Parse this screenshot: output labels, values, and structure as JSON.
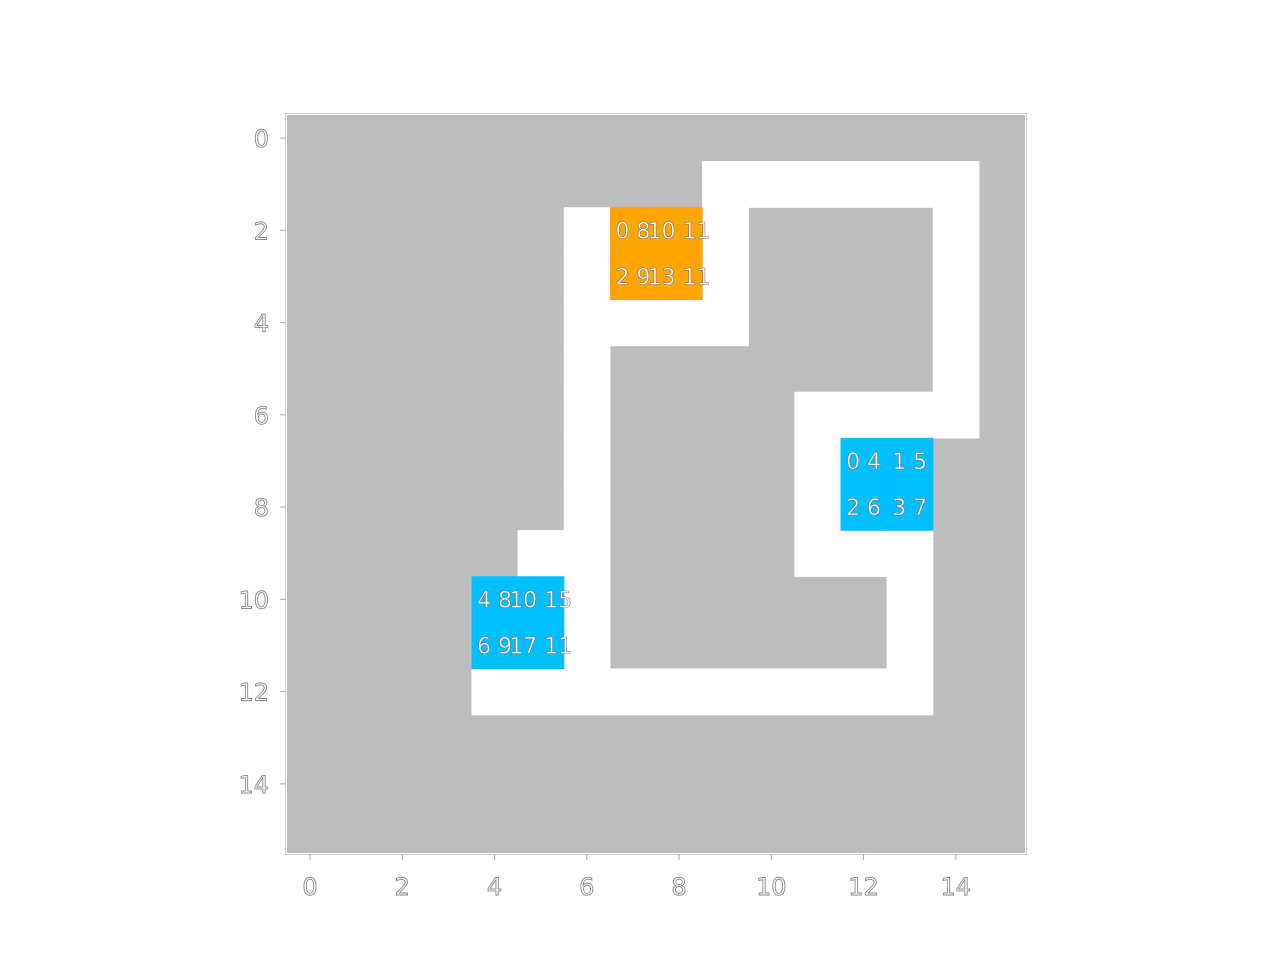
{
  "grid": {
    "rows": 16,
    "cols": 16,
    "x_ticks": [
      "0",
      "2",
      "4",
      "6",
      "8",
      "10",
      "12",
      "14"
    ],
    "y_ticks": [
      "0",
      "2",
      "4",
      "6",
      "8",
      "10",
      "12",
      "14"
    ],
    "colors": {
      "wall": "#bdbdbd",
      "path": "#ffffff",
      "orange_piece": "#ffa500",
      "blue_piece": "#00bfff",
      "frame": "#cccccc"
    },
    "path_cells": [
      [
        1,
        9
      ],
      [
        1,
        10
      ],
      [
        1,
        11
      ],
      [
        1,
        12
      ],
      [
        1,
        13
      ],
      [
        1,
        14
      ],
      [
        2,
        6
      ],
      [
        2,
        9
      ],
      [
        2,
        14
      ],
      [
        3,
        6
      ],
      [
        3,
        9
      ],
      [
        3,
        14
      ],
      [
        4,
        6
      ],
      [
        4,
        7
      ],
      [
        4,
        8
      ],
      [
        4,
        9
      ],
      [
        4,
        14
      ],
      [
        5,
        6
      ],
      [
        5,
        14
      ],
      [
        6,
        6
      ],
      [
        6,
        11
      ],
      [
        6,
        12
      ],
      [
        6,
        13
      ],
      [
        6,
        14
      ],
      [
        7,
        6
      ],
      [
        7,
        11
      ],
      [
        8,
        6
      ],
      [
        8,
        11
      ],
      [
        9,
        5
      ],
      [
        9,
        6
      ],
      [
        9,
        11
      ],
      [
        9,
        12
      ],
      [
        9,
        13
      ],
      [
        10,
        6
      ],
      [
        10,
        13
      ],
      [
        11,
        6
      ],
      [
        11,
        13
      ],
      [
        12,
        4
      ],
      [
        12,
        5
      ],
      [
        12,
        6
      ],
      [
        12,
        7
      ],
      [
        12,
        8
      ],
      [
        12,
        9
      ],
      [
        12,
        10
      ],
      [
        12,
        11
      ],
      [
        12,
        12
      ],
      [
        12,
        13
      ]
    ],
    "pieces": [
      {
        "name": "orange-piece",
        "color": "orange_piece",
        "cells": [
          {
            "r": 2,
            "c": 7,
            "label": "0 8"
          },
          {
            "r": 2,
            "c": 8,
            "label": "10 11"
          },
          {
            "r": 3,
            "c": 7,
            "label": "2 9"
          },
          {
            "r": 3,
            "c": 8,
            "label": "13 11"
          }
        ]
      },
      {
        "name": "blue-piece-right",
        "color": "blue_piece",
        "cells": [
          {
            "r": 7,
            "c": 12,
            "label": "0 4"
          },
          {
            "r": 7,
            "c": 13,
            "label": "1 5"
          },
          {
            "r": 8,
            "c": 12,
            "label": "2 6"
          },
          {
            "r": 8,
            "c": 13,
            "label": "3 7"
          }
        ]
      },
      {
        "name": "blue-piece-left",
        "color": "blue_piece",
        "cells": [
          {
            "r": 10,
            "c": 4,
            "label": "4 8"
          },
          {
            "r": 10,
            "c": 5,
            "label": "10 15"
          },
          {
            "r": 11,
            "c": 4,
            "label": "6 9"
          },
          {
            "r": 11,
            "c": 5,
            "label": "17 11"
          }
        ]
      }
    ]
  }
}
